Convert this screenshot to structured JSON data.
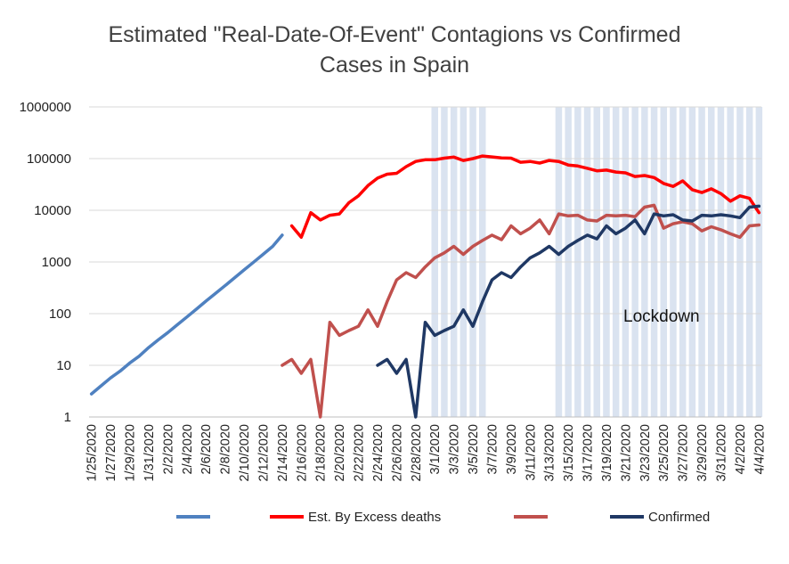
{
  "chart_data": {
    "type": "line",
    "title_line1": "Estimated \"Real-Date-Of-Event\" Contagions vs Confirmed",
    "title_line2": "Cases in Spain",
    "y_scale": "log",
    "ylim": [
      1,
      1000000
    ],
    "y_ticks": [
      "1",
      "10",
      "100",
      "1000",
      "10000",
      "100000",
      "1000000"
    ],
    "x_start": "2020-01-25",
    "x_labels": [
      "1/25/2020",
      "1/27/2020",
      "1/29/2020",
      "1/31/2020",
      "2/2/2020",
      "2/4/2020",
      "2/6/2020",
      "2/8/2020",
      "2/10/2020",
      "2/12/2020",
      "2/14/2020",
      "2/16/2020",
      "2/18/2020",
      "2/20/2020",
      "2/22/2020",
      "2/24/2020",
      "2/26/2020",
      "2/28/2020",
      "3/1/2020",
      "3/3/2020",
      "3/5/2020",
      "3/7/2020",
      "3/9/2020",
      "3/11/2020",
      "3/13/2020",
      "3/15/2020",
      "3/17/2020",
      "3/19/2020",
      "3/21/2020",
      "3/23/2020",
      "3/25/2020",
      "3/27/2020",
      "3/29/2020",
      "3/31/2020",
      "4/2/2020",
      "4/4/2020"
    ],
    "shaded_ranges": [
      [
        "2020-03-01",
        "2020-03-06"
      ],
      [
        "2020-03-14",
        "2020-04-04"
      ]
    ],
    "annotation": "Lockdown",
    "legend": [
      "",
      "Est. By Excess deaths",
      "",
      "Confirmed"
    ],
    "series": [
      {
        "color": "#4f81c0",
        "x": [
          "2020-01-25",
          "2020-01-26",
          "2020-01-27",
          "2020-01-28",
          "2020-01-29",
          "2020-01-30",
          "2020-01-31",
          "2020-02-01",
          "2020-02-02",
          "2020-02-03",
          "2020-02-04",
          "2020-02-05",
          "2020-02-06",
          "2020-02-07",
          "2020-02-08",
          "2020-02-09",
          "2020-02-10",
          "2020-02-11",
          "2020-02-12",
          "2020-02-13",
          "2020-02-14"
        ],
        "y": [
          2.8,
          4,
          5.7,
          7.7,
          11,
          15,
          22,
          31,
          43,
          61,
          86,
          122,
          174,
          245,
          347,
          492,
          700,
          990,
          1400,
          2000,
          3300
        ]
      },
      {
        "color": "#ff0000",
        "x": [
          "2020-02-15",
          "2020-02-16",
          "2020-02-17",
          "2020-02-18",
          "2020-02-19",
          "2020-02-20",
          "2020-02-21",
          "2020-02-22",
          "2020-02-23",
          "2020-02-24",
          "2020-02-25",
          "2020-02-26",
          "2020-02-27",
          "2020-02-28",
          "2020-02-29",
          "2020-03-01",
          "2020-03-02",
          "2020-03-03",
          "2020-03-04",
          "2020-03-05",
          "2020-03-06",
          "2020-03-07",
          "2020-03-08",
          "2020-03-09",
          "2020-03-10",
          "2020-03-11",
          "2020-03-12",
          "2020-03-13",
          "2020-03-14",
          "2020-03-15",
          "2020-03-16",
          "2020-03-17",
          "2020-03-18",
          "2020-03-19",
          "2020-03-20",
          "2020-03-21",
          "2020-03-22",
          "2020-03-23",
          "2020-03-24",
          "2020-03-25",
          "2020-03-26",
          "2020-03-27",
          "2020-03-28",
          "2020-03-29",
          "2020-03-30",
          "2020-03-31",
          "2020-04-01",
          "2020-04-02",
          "2020-04-03",
          "2020-04-04"
        ],
        "y": [
          5000,
          3000,
          9000,
          6500,
          8000,
          8500,
          14000,
          19000,
          30000,
          42000,
          50000,
          52000,
          70000,
          88000,
          95000,
          95000,
          102000,
          107000,
          92000,
          100000,
          112000,
          108000,
          103000,
          102000,
          85000,
          88000,
          82000,
          92000,
          88000,
          75000,
          72000,
          65000,
          58000,
          60000,
          55000,
          53000,
          45000,
          47000,
          43000,
          33000,
          29000,
          37000,
          25000,
          22000,
          26000,
          21000,
          15000,
          19000,
          17000,
          9000
        ]
      },
      {
        "color": "#c0504d",
        "x": [
          "2020-02-14",
          "2020-02-15",
          "2020-02-16",
          "2020-02-17",
          "2020-02-18",
          "2020-02-19",
          "2020-02-20",
          "2020-02-21",
          "2020-02-22",
          "2020-02-23",
          "2020-02-24",
          "2020-02-25",
          "2020-02-26",
          "2020-02-27",
          "2020-02-28",
          "2020-02-29",
          "2020-03-01",
          "2020-03-02",
          "2020-03-03",
          "2020-03-04",
          "2020-03-05",
          "2020-03-06",
          "2020-03-07",
          "2020-03-08",
          "2020-03-09",
          "2020-03-10",
          "2020-03-11",
          "2020-03-12",
          "2020-03-13",
          "2020-03-14",
          "2020-03-15",
          "2020-03-16",
          "2020-03-17",
          "2020-03-18",
          "2020-03-19",
          "2020-03-20",
          "2020-03-21",
          "2020-03-22",
          "2020-03-23",
          "2020-03-24",
          "2020-03-25",
          "2020-03-26",
          "2020-03-27",
          "2020-03-28",
          "2020-03-29",
          "2020-03-30",
          "2020-03-31",
          "2020-04-01",
          "2020-04-02",
          "2020-04-03",
          "2020-04-04"
        ],
        "y": [
          10,
          13,
          7,
          13,
          1,
          68,
          38,
          47,
          57,
          118,
          57,
          170,
          450,
          620,
          500,
          800,
          1200,
          1500,
          2000,
          1400,
          2000,
          2600,
          3300,
          2700,
          5000,
          3500,
          4500,
          6500,
          3500,
          8500,
          7800,
          8000,
          6500,
          6200,
          8000,
          7800,
          8000,
          7500,
          11500,
          12500,
          4500,
          5500,
          6000,
          5500,
          4000,
          4800,
          4200,
          3500,
          3000,
          5000,
          5200
        ]
      },
      {
        "color": "#1f3864",
        "x": [
          "2020-02-24",
          "2020-02-25",
          "2020-02-26",
          "2020-02-27",
          "2020-02-28",
          "2020-02-29",
          "2020-03-01",
          "2020-03-02",
          "2020-03-03",
          "2020-03-04",
          "2020-03-05",
          "2020-03-06",
          "2020-03-07",
          "2020-03-08",
          "2020-03-09",
          "2020-03-10",
          "2020-03-11",
          "2020-03-12",
          "2020-03-13",
          "2020-03-14",
          "2020-03-15",
          "2020-03-16",
          "2020-03-17",
          "2020-03-18",
          "2020-03-19",
          "2020-03-20",
          "2020-03-21",
          "2020-03-22",
          "2020-03-23",
          "2020-03-24",
          "2020-03-25",
          "2020-03-26",
          "2020-03-27",
          "2020-03-28",
          "2020-03-29",
          "2020-03-30",
          "2020-03-31",
          "2020-04-01",
          "2020-04-02",
          "2020-04-03",
          "2020-04-04"
        ],
        "y": [
          10,
          13,
          7,
          13,
          1,
          68,
          38,
          47,
          57,
          118,
          57,
          170,
          450,
          620,
          500,
          800,
          1200,
          1500,
          2000,
          1400,
          2000,
          2600,
          3300,
          2800,
          5000,
          3500,
          4500,
          6500,
          3500,
          8500,
          7800,
          8200,
          6500,
          6200,
          8000,
          7800,
          8200,
          7800,
          7200,
          11500,
          12000
        ]
      }
    ]
  }
}
